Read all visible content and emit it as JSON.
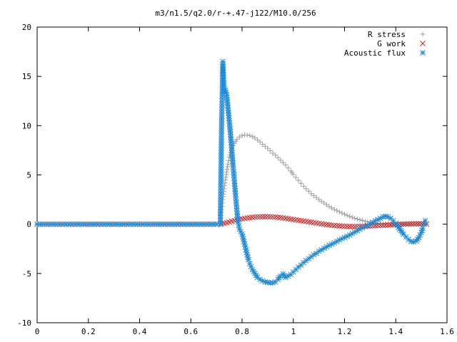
{
  "chart_data": {
    "type": "scatter",
    "title": "m3/n1.5/q2.0/r-+.47-j122/M10.0/256",
    "xlabel": "",
    "ylabel": "",
    "xlim": [
      0,
      1.6
    ],
    "ylim": [
      -10,
      20
    ],
    "grid": false,
    "legend_placement": "top-right",
    "x_ticks": [
      0,
      0.2,
      0.4,
      0.6,
      0.8,
      1.0,
      1.2,
      1.4,
      1.6
    ],
    "x_tick_labels": [
      "0",
      "0.2",
      "0.4",
      "0.6",
      "0.8",
      "1",
      "1.2",
      "1.4",
      "1.6"
    ],
    "y_ticks": [
      -10,
      -5,
      0,
      5,
      10,
      15,
      20
    ],
    "y_tick_labels": [
      "-10",
      "-5",
      "0",
      "5",
      "10",
      "15",
      "20"
    ],
    "series": [
      {
        "name": "R stress",
        "marker": "plus",
        "color": "#a0a0a0",
        "points": [
          [
            0.0,
            0
          ],
          [
            0.05,
            0
          ],
          [
            0.1,
            0
          ],
          [
            0.15,
            0
          ],
          [
            0.2,
            0
          ],
          [
            0.25,
            0
          ],
          [
            0.3,
            0
          ],
          [
            0.35,
            0
          ],
          [
            0.4,
            0
          ],
          [
            0.45,
            0
          ],
          [
            0.5,
            0
          ],
          [
            0.55,
            0
          ],
          [
            0.6,
            0
          ],
          [
            0.65,
            0
          ],
          [
            0.7,
            0
          ],
          [
            0.715,
            0
          ],
          [
            0.72,
            1.5
          ],
          [
            0.725,
            2.5
          ],
          [
            0.73,
            3.6
          ],
          [
            0.735,
            4.5
          ],
          [
            0.74,
            5.3
          ],
          [
            0.745,
            6.1
          ],
          [
            0.75,
            6.8
          ],
          [
            0.755,
            7.3
          ],
          [
            0.76,
            7.7
          ],
          [
            0.77,
            8.2
          ],
          [
            0.78,
            8.6
          ],
          [
            0.79,
            8.85
          ],
          [
            0.8,
            9.0
          ],
          [
            0.81,
            9.05
          ],
          [
            0.82,
            9.05
          ],
          [
            0.83,
            9.0
          ],
          [
            0.84,
            8.9
          ],
          [
            0.85,
            8.75
          ],
          [
            0.86,
            8.55
          ],
          [
            0.87,
            8.35
          ],
          [
            0.88,
            8.1
          ],
          [
            0.89,
            7.9
          ],
          [
            0.9,
            7.7
          ],
          [
            0.91,
            7.45
          ],
          [
            0.92,
            7.2
          ],
          [
            0.93,
            7.0
          ],
          [
            0.94,
            6.75
          ],
          [
            0.95,
            6.5
          ],
          [
            0.96,
            6.25
          ],
          [
            0.97,
            6.0
          ],
          [
            0.98,
            5.7
          ],
          [
            0.99,
            5.4
          ],
          [
            1.0,
            5.05
          ],
          [
            1.01,
            4.75
          ],
          [
            1.02,
            4.45
          ],
          [
            1.03,
            4.15
          ],
          [
            1.04,
            3.85
          ],
          [
            1.05,
            3.6
          ],
          [
            1.06,
            3.35
          ],
          [
            1.07,
            3.1
          ],
          [
            1.08,
            2.9
          ],
          [
            1.09,
            2.7
          ],
          [
            1.1,
            2.5
          ],
          [
            1.12,
            2.15
          ],
          [
            1.14,
            1.8
          ],
          [
            1.16,
            1.5
          ],
          [
            1.18,
            1.25
          ],
          [
            1.2,
            1.0
          ],
          [
            1.22,
            0.8
          ],
          [
            1.24,
            0.6
          ],
          [
            1.26,
            0.45
          ],
          [
            1.28,
            0.3
          ],
          [
            1.3,
            0.2
          ],
          [
            1.32,
            0.12
          ],
          [
            1.34,
            0.05
          ],
          [
            1.36,
            0.02
          ],
          [
            1.38,
            0
          ],
          [
            1.4,
            0
          ],
          [
            1.42,
            0
          ],
          [
            1.44,
            0
          ],
          [
            1.46,
            0
          ],
          [
            1.48,
            0
          ],
          [
            1.5,
            0
          ],
          [
            1.52,
            0
          ]
        ]
      },
      {
        "name": "G work",
        "marker": "cross",
        "color": "#cc2020",
        "points": [
          [
            0.0,
            0
          ],
          [
            0.05,
            0
          ],
          [
            0.1,
            0
          ],
          [
            0.15,
            0
          ],
          [
            0.2,
            0
          ],
          [
            0.25,
            0
          ],
          [
            0.3,
            0
          ],
          [
            0.35,
            0
          ],
          [
            0.4,
            0
          ],
          [
            0.45,
            0
          ],
          [
            0.5,
            0
          ],
          [
            0.55,
            0
          ],
          [
            0.6,
            0
          ],
          [
            0.65,
            0
          ],
          [
            0.7,
            0
          ],
          [
            0.715,
            0
          ],
          [
            0.72,
            0.05
          ],
          [
            0.73,
            0.1
          ],
          [
            0.74,
            0.15
          ],
          [
            0.75,
            0.22
          ],
          [
            0.76,
            0.3
          ],
          [
            0.77,
            0.37
          ],
          [
            0.78,
            0.43
          ],
          [
            0.79,
            0.5
          ],
          [
            0.8,
            0.55
          ],
          [
            0.82,
            0.63
          ],
          [
            0.84,
            0.7
          ],
          [
            0.86,
            0.74
          ],
          [
            0.88,
            0.76
          ],
          [
            0.9,
            0.76
          ],
          [
            0.92,
            0.74
          ],
          [
            0.94,
            0.7
          ],
          [
            0.96,
            0.64
          ],
          [
            0.98,
            0.56
          ],
          [
            1.0,
            0.48
          ],
          [
            1.02,
            0.4
          ],
          [
            1.04,
            0.32
          ],
          [
            1.06,
            0.24
          ],
          [
            1.08,
            0.16
          ],
          [
            1.1,
            0.08
          ],
          [
            1.12,
            0.0
          ],
          [
            1.14,
            -0.07
          ],
          [
            1.16,
            -0.13
          ],
          [
            1.18,
            -0.18
          ],
          [
            1.2,
            -0.21
          ],
          [
            1.22,
            -0.23
          ],
          [
            1.24,
            -0.24
          ],
          [
            1.26,
            -0.23
          ],
          [
            1.28,
            -0.21
          ],
          [
            1.3,
            -0.18
          ],
          [
            1.32,
            -0.15
          ],
          [
            1.34,
            -0.12
          ],
          [
            1.36,
            -0.09
          ],
          [
            1.38,
            -0.06
          ],
          [
            1.4,
            -0.03
          ],
          [
            1.42,
            0.0
          ],
          [
            1.44,
            0.02
          ],
          [
            1.46,
            0.04
          ],
          [
            1.48,
            0.05
          ],
          [
            1.5,
            0.05
          ],
          [
            1.52,
            0.02
          ]
        ]
      },
      {
        "name": "Acoustic flux",
        "marker": "star",
        "color": "#1f8ad6",
        "points": [
          [
            0.0,
            0
          ],
          [
            0.05,
            0
          ],
          [
            0.1,
            0
          ],
          [
            0.15,
            0
          ],
          [
            0.2,
            0
          ],
          [
            0.25,
            0
          ],
          [
            0.3,
            0
          ],
          [
            0.35,
            0
          ],
          [
            0.4,
            0
          ],
          [
            0.45,
            0
          ],
          [
            0.5,
            0
          ],
          [
            0.55,
            0
          ],
          [
            0.6,
            0
          ],
          [
            0.65,
            0
          ],
          [
            0.7,
            0
          ],
          [
            0.715,
            0
          ],
          [
            0.72,
            9.8
          ],
          [
            0.725,
            16.5
          ],
          [
            0.73,
            13.4
          ],
          [
            0.735,
            13.6
          ],
          [
            0.74,
            13.1
          ],
          [
            0.745,
            11.8
          ],
          [
            0.75,
            10.5
          ],
          [
            0.755,
            9.1
          ],
          [
            0.76,
            7.5
          ],
          [
            0.765,
            5.9
          ],
          [
            0.77,
            4.4
          ],
          [
            0.775,
            2.8
          ],
          [
            0.78,
            1.3
          ],
          [
            0.785,
            0.2
          ],
          [
            0.79,
            -0.5
          ],
          [
            0.8,
            -1.0
          ],
          [
            0.805,
            -1.5
          ],
          [
            0.81,
            -2.0
          ],
          [
            0.815,
            -2.6
          ],
          [
            0.82,
            -3.1
          ],
          [
            0.825,
            -3.6
          ],
          [
            0.83,
            -4.0
          ],
          [
            0.84,
            -4.6
          ],
          [
            0.85,
            -5.0
          ],
          [
            0.86,
            -5.4
          ],
          [
            0.87,
            -5.6
          ],
          [
            0.88,
            -5.75
          ],
          [
            0.89,
            -5.85
          ],
          [
            0.9,
            -5.9
          ],
          [
            0.91,
            -5.95
          ],
          [
            0.92,
            -5.95
          ],
          [
            0.93,
            -5.85
          ],
          [
            0.94,
            -5.6
          ],
          [
            0.95,
            -5.25
          ],
          [
            0.96,
            -5.05
          ],
          [
            0.97,
            -5.4
          ],
          [
            0.98,
            -5.25
          ],
          [
            0.99,
            -5.1
          ],
          [
            1.0,
            -4.85
          ],
          [
            1.01,
            -4.6
          ],
          [
            1.02,
            -4.35
          ],
          [
            1.03,
            -4.15
          ],
          [
            1.04,
            -3.9
          ],
          [
            1.05,
            -3.7
          ],
          [
            1.06,
            -3.5
          ],
          [
            1.07,
            -3.3
          ],
          [
            1.08,
            -3.1
          ],
          [
            1.09,
            -2.95
          ],
          [
            1.1,
            -2.75
          ],
          [
            1.12,
            -2.45
          ],
          [
            1.14,
            -2.15
          ],
          [
            1.16,
            -1.9
          ],
          [
            1.18,
            -1.6
          ],
          [
            1.2,
            -1.35
          ],
          [
            1.22,
            -1.1
          ],
          [
            1.24,
            -0.8
          ],
          [
            1.26,
            -0.5
          ],
          [
            1.28,
            -0.25
          ],
          [
            1.3,
            0.05
          ],
          [
            1.32,
            0.35
          ],
          [
            1.34,
            0.6
          ],
          [
            1.35,
            0.75
          ],
          [
            1.36,
            0.8
          ],
          [
            1.37,
            0.75
          ],
          [
            1.38,
            0.6
          ],
          [
            1.39,
            0.35
          ],
          [
            1.4,
            0.05
          ],
          [
            1.41,
            -0.3
          ],
          [
            1.42,
            -0.65
          ],
          [
            1.43,
            -1.0
          ],
          [
            1.44,
            -1.3
          ],
          [
            1.45,
            -1.55
          ],
          [
            1.46,
            -1.75
          ],
          [
            1.47,
            -1.8
          ],
          [
            1.48,
            -1.7
          ],
          [
            1.49,
            -1.35
          ],
          [
            1.5,
            -0.85
          ],
          [
            1.505,
            -0.4
          ],
          [
            1.51,
            0.0
          ],
          [
            1.515,
            0.35
          ]
        ]
      }
    ]
  }
}
